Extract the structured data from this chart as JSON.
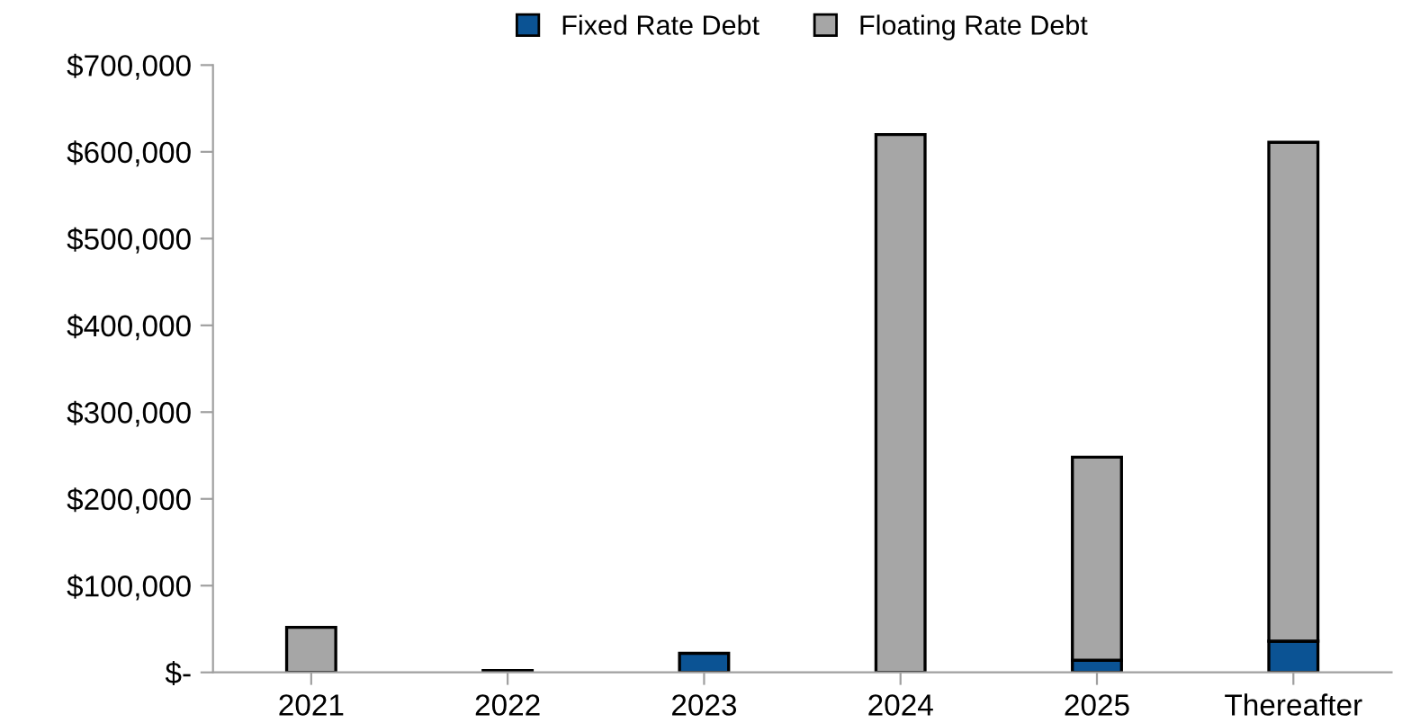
{
  "chart_data": {
    "type": "bar",
    "stacked": true,
    "categories": [
      "2021",
      "2022",
      "2023",
      "2024",
      "2025",
      "Thereafter"
    ],
    "series": [
      {
        "name": "Fixed Rate Debt",
        "color": "#0b5394",
        "values": [
          null,
          null,
          22000,
          null,
          14000,
          36000
        ]
      },
      {
        "name": "Floating Rate Debt",
        "color": "#a6a6a6",
        "values": [
          52000,
          2000,
          null,
          620000,
          234000,
          575000
        ]
      }
    ],
    "ylim": [
      0,
      700000
    ],
    "yticks": [
      {
        "value": 0,
        "label": "$-"
      },
      {
        "value": 100000,
        "label": "$100,000"
      },
      {
        "value": 200000,
        "label": "$200,000"
      },
      {
        "value": 300000,
        "label": "$300,000"
      },
      {
        "value": 400000,
        "label": "$400,000"
      },
      {
        "value": 500000,
        "label": "$500,000"
      },
      {
        "value": 600000,
        "label": "$600,000"
      },
      {
        "value": 700000,
        "label": "$700,000"
      }
    ],
    "grid": false,
    "legend": "top"
  }
}
